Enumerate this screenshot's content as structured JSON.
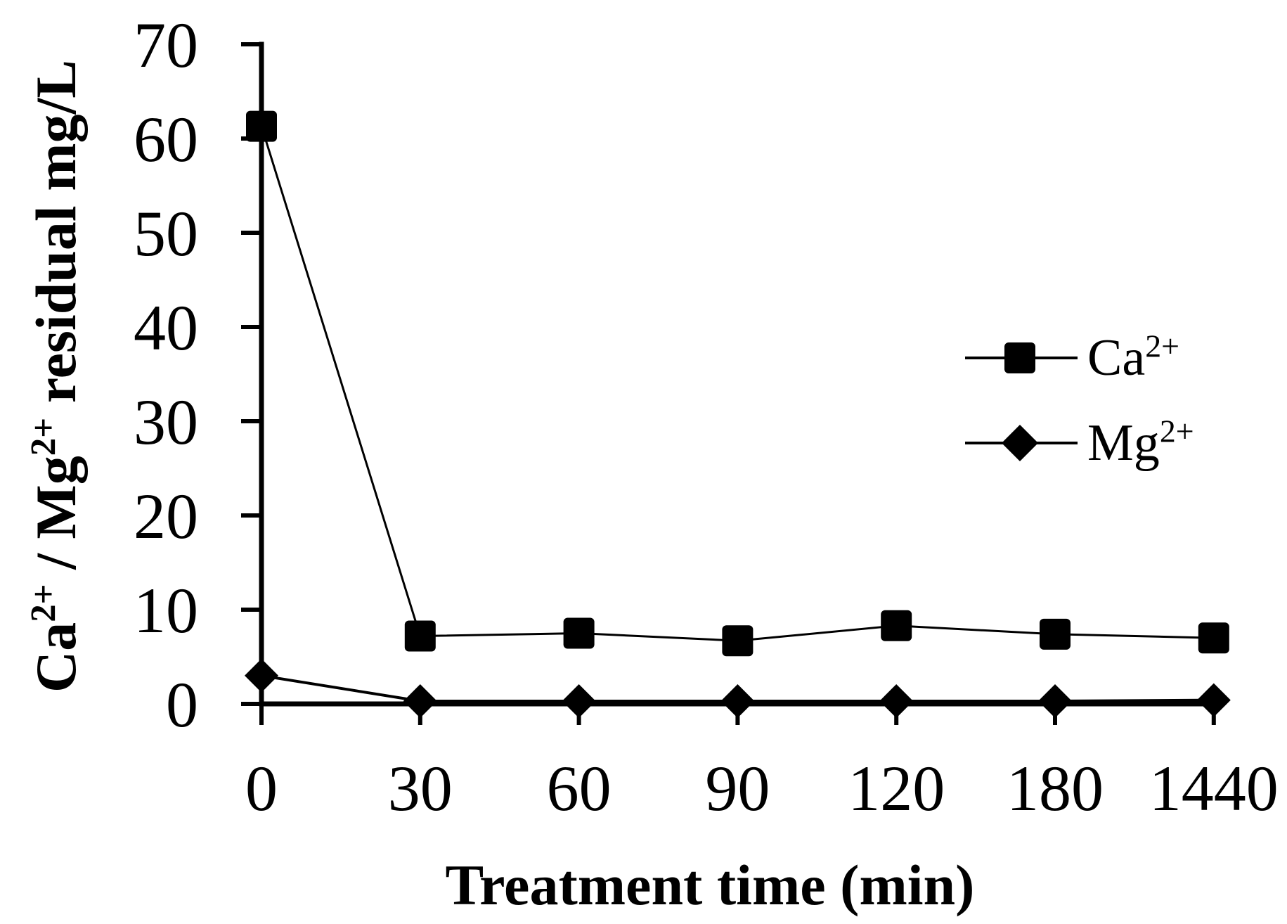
{
  "chart_data": {
    "type": "line",
    "title": "",
    "xlabel": "Treatment time (min)",
    "ylabel_parts": {
      "base1": "Ca",
      "sup1": "2+",
      "mid": " / Mg",
      "sup2": "2+",
      "rest": " residual mg/L"
    },
    "categories": [
      "0",
      "30",
      "60",
      "90",
      "120",
      "180",
      "1440"
    ],
    "yticks": [
      "70",
      "60",
      "50",
      "40",
      "30",
      "20",
      "10",
      "0"
    ],
    "ylim": [
      0,
      70
    ],
    "grid": false,
    "legend_position": "right-inside",
    "series": [
      {
        "name_base": "Ca",
        "name_sup": "2+",
        "marker": "square",
        "values": [
          61.3,
          7.2,
          7.5,
          6.7,
          8.3,
          7.4,
          7.0
        ]
      },
      {
        "name_base": "Mg",
        "name_sup": "2+",
        "marker": "diamond",
        "values": [
          3.0,
          0.3,
          0.3,
          0.3,
          0.3,
          0.3,
          0.4
        ]
      }
    ],
    "colors": {
      "foreground": "#000000",
      "background": "#ffffff"
    }
  }
}
